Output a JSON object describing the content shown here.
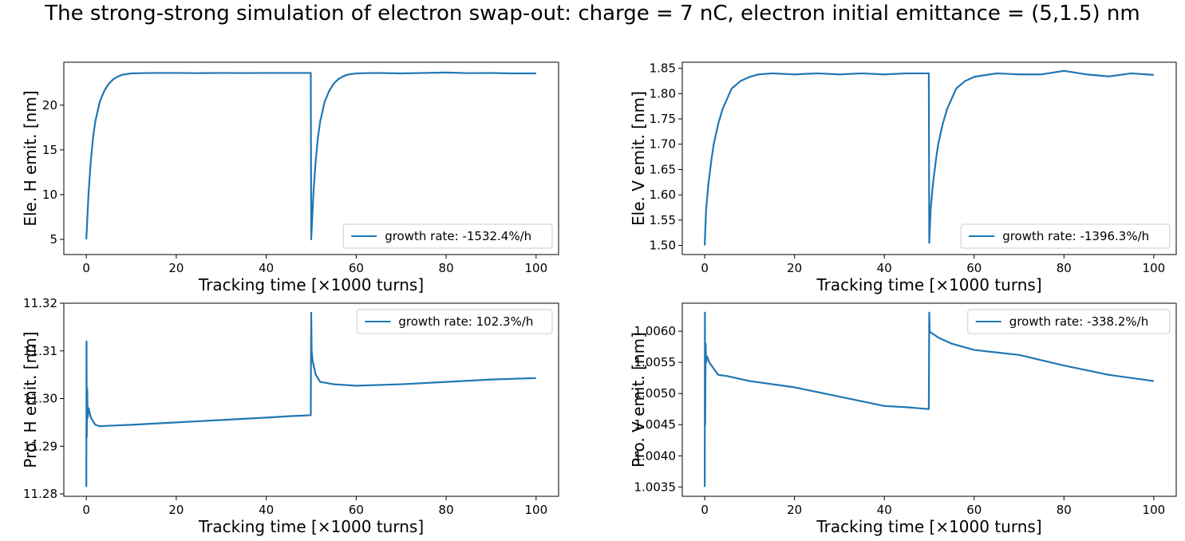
{
  "page": {
    "title": "The strong-strong simulation of electron swap-out: charge = 7 nC, electron initial emittance = (5,1.5) nm"
  },
  "colors": {
    "line": "#1f77b4",
    "axis": "#000000",
    "legend_border": "#cccccc"
  },
  "chart_data": [
    {
      "type": "line",
      "ylabel": "Ele. H emit. [nm]",
      "xlabel": "Tracking time [×1000 turns]",
      "xlim": [
        -5,
        105
      ],
      "ylim": [
        3.3,
        24.8
      ],
      "xticks": [
        0,
        20,
        40,
        60,
        80,
        100
      ],
      "yticks": [
        5,
        10,
        15,
        20
      ],
      "ytick_labels": [
        "5",
        "10",
        "15",
        "20"
      ],
      "legend_loc": "lower right",
      "series": [
        {
          "name": "growth rate: -1532.4%/h",
          "x": [
            0,
            0.5,
            1,
            1.5,
            2,
            3,
            4,
            5,
            6,
            7,
            8,
            10,
            12,
            15,
            20,
            25,
            30,
            35,
            40,
            45,
            49.9,
            50,
            50.5,
            51,
            51.5,
            52,
            53,
            54,
            55,
            56,
            57,
            58,
            60,
            62,
            65,
            70,
            75,
            80,
            85,
            90,
            95,
            100
          ],
          "y": [
            5.0,
            10.2,
            13.8,
            16.4,
            18.2,
            20.4,
            21.6,
            22.4,
            22.9,
            23.2,
            23.4,
            23.55,
            23.58,
            23.6,
            23.6,
            23.58,
            23.6,
            23.59,
            23.6,
            23.6,
            23.6,
            5.0,
            10.2,
            13.8,
            16.4,
            18.2,
            20.4,
            21.6,
            22.4,
            22.9,
            23.2,
            23.4,
            23.55,
            23.58,
            23.6,
            23.55,
            23.6,
            23.65,
            23.58,
            23.6,
            23.55,
            23.55
          ]
        }
      ]
    },
    {
      "type": "line",
      "ylabel": "Ele. V emit. [nm]",
      "xlabel": "Tracking time [×1000 turns]",
      "xlim": [
        -5,
        105
      ],
      "ylim": [
        1.482,
        1.862
      ],
      "xticks": [
        0,
        20,
        40,
        60,
        80,
        100
      ],
      "yticks": [
        1.5,
        1.55,
        1.6,
        1.65,
        1.7,
        1.75,
        1.8,
        1.85
      ],
      "ytick_labels": [
        "1.50",
        "1.55",
        "1.60",
        "1.65",
        "1.70",
        "1.75",
        "1.80",
        "1.85"
      ],
      "legend_loc": "lower right",
      "series": [
        {
          "name": "growth rate: -1396.3%/h",
          "x": [
            0,
            0.3,
            0.8,
            1.5,
            2,
            3,
            4,
            5,
            6,
            8,
            10,
            12,
            15,
            20,
            25,
            30,
            35,
            40,
            45,
            49.9,
            50,
            50.3,
            50.8,
            51.5,
            52,
            53,
            54,
            55,
            56,
            58,
            60,
            62,
            65,
            70,
            75,
            80,
            85,
            90,
            95,
            100
          ],
          "y": [
            1.5,
            1.57,
            1.62,
            1.67,
            1.7,
            1.74,
            1.77,
            1.79,
            1.81,
            1.825,
            1.833,
            1.838,
            1.84,
            1.838,
            1.84,
            1.838,
            1.84,
            1.838,
            1.84,
            1.84,
            1.505,
            1.57,
            1.62,
            1.67,
            1.7,
            1.74,
            1.77,
            1.79,
            1.81,
            1.825,
            1.833,
            1.836,
            1.84,
            1.838,
            1.838,
            1.845,
            1.838,
            1.834,
            1.84,
            1.837
          ]
        }
      ]
    },
    {
      "type": "line",
      "ylabel": "Pro. H emit. [nm]",
      "xlabel": "Tracking time [×1000 turns]",
      "xlim": [
        -5,
        105
      ],
      "ylim": [
        11.2795,
        11.32
      ],
      "xticks": [
        0,
        20,
        40,
        60,
        80,
        100
      ],
      "yticks": [
        11.28,
        11.29,
        11.3,
        11.31,
        11.32
      ],
      "ytick_labels": [
        "11.28",
        "11.29",
        "11.30",
        "11.31",
        "11.32"
      ],
      "legend_loc": "upper right",
      "series": [
        {
          "name": "growth rate: 102.3%/h",
          "x": [
            0,
            0.05,
            0.1,
            0.2,
            0.3,
            0.5,
            1,
            2,
            3,
            5,
            10,
            20,
            30,
            40,
            45,
            49.9,
            50,
            50.1,
            50.3,
            51,
            52,
            55,
            60,
            70,
            80,
            90,
            100
          ],
          "y": [
            11.2815,
            11.312,
            11.292,
            11.302,
            11.296,
            11.298,
            11.296,
            11.2945,
            11.2942,
            11.2943,
            11.2945,
            11.295,
            11.2955,
            11.296,
            11.2963,
            11.2965,
            11.318,
            11.31,
            11.308,
            11.305,
            11.3035,
            11.303,
            11.3027,
            11.303,
            11.3035,
            11.304,
            11.3043
          ]
        }
      ]
    },
    {
      "type": "line",
      "ylabel": "Pro. V emit. [nm]",
      "xlabel": "Tracking time [×1000 turns]",
      "xlim": [
        -5,
        105
      ],
      "ylim": [
        1.00335,
        1.00645
      ],
      "xticks": [
        0,
        20,
        40,
        60,
        80,
        100
      ],
      "yticks": [
        1.0035,
        1.004,
        1.0045,
        1.005,
        1.0055,
        1.006
      ],
      "ytick_labels": [
        "1.0035",
        "1.0040",
        "1.0045",
        "1.0050",
        "1.0055",
        "1.0060"
      ],
      "legend_loc": "upper right",
      "series": [
        {
          "name": "growth rate: -338.2%/h",
          "x": [
            0,
            0.05,
            0.1,
            0.2,
            0.3,
            0.5,
            1,
            2,
            3,
            5,
            10,
            20,
            30,
            40,
            45,
            49.9,
            50,
            50.1,
            50.3,
            51,
            52,
            55,
            60,
            70,
            80,
            90,
            100
          ],
          "y": [
            1.0035,
            1.0063,
            1.0045,
            1.0058,
            1.0055,
            1.0056,
            1.0055,
            1.0054,
            1.0053,
            1.00528,
            1.0052,
            1.0051,
            1.00495,
            1.0048,
            1.00478,
            1.00475,
            1.0063,
            1.006,
            1.00598,
            1.00595,
            1.0059,
            1.0058,
            1.0057,
            1.00562,
            1.00545,
            1.0053,
            1.0052
          ]
        }
      ]
    }
  ]
}
